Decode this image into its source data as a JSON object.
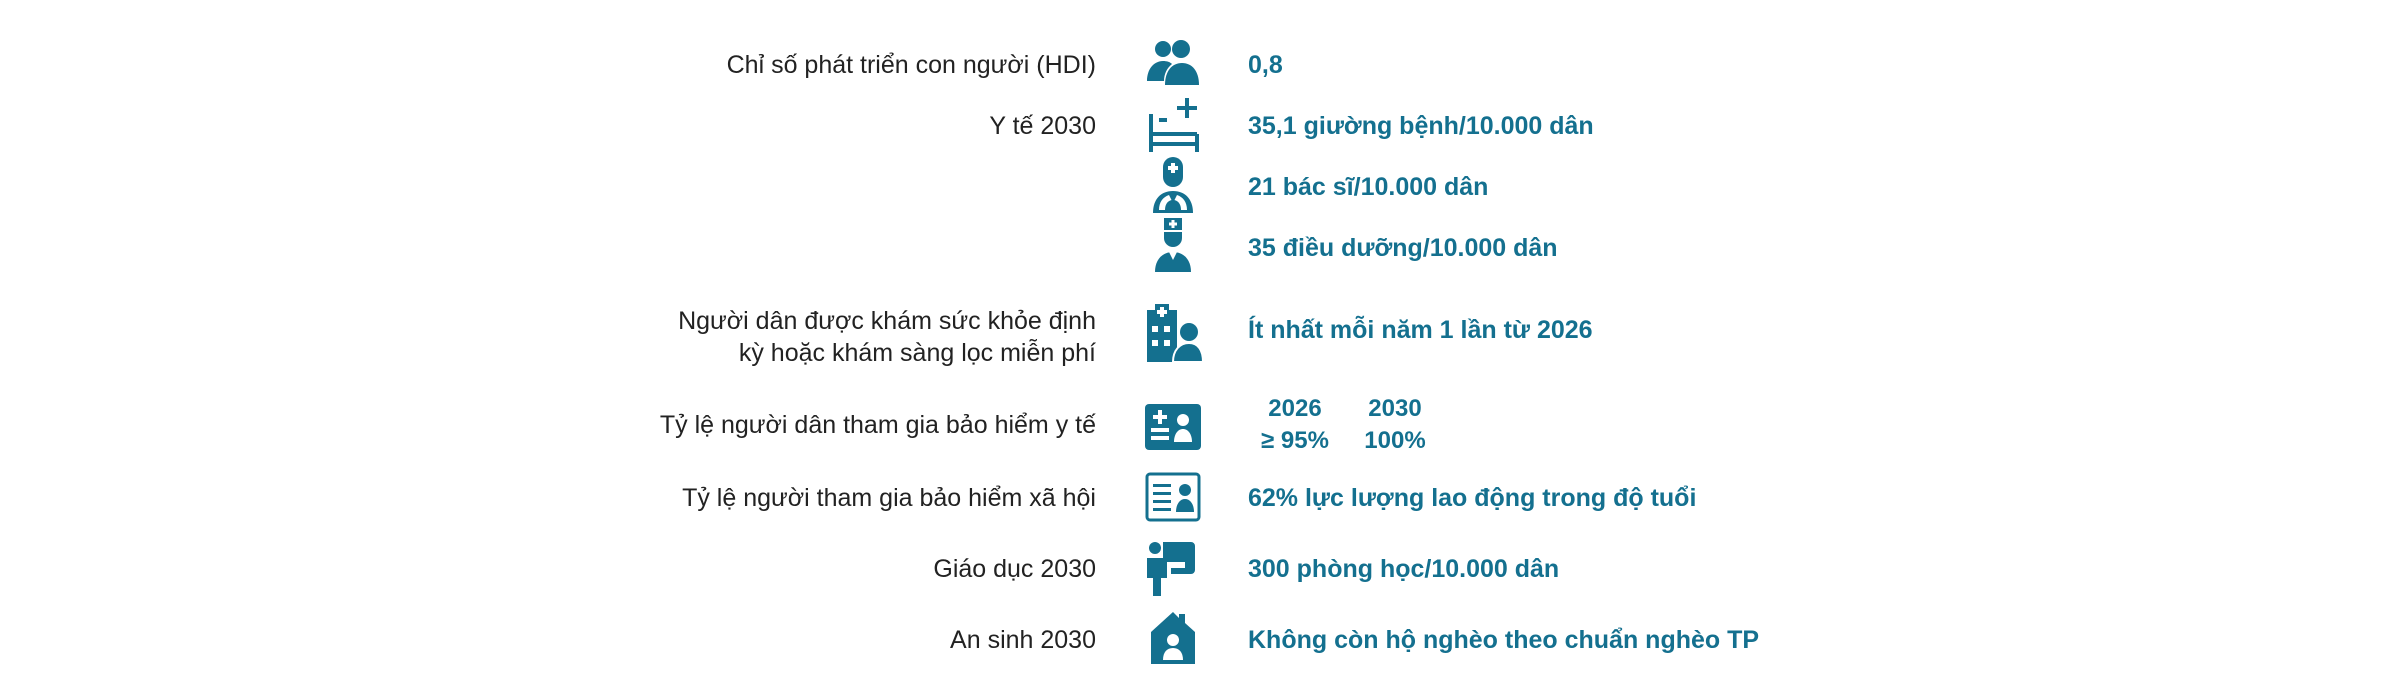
{
  "accent_color": "#14708f",
  "rows": [
    {
      "label": "Chỉ số phát triển con người (HDI)",
      "icon": "people-icon",
      "value": "0,8"
    },
    {
      "label": "Y tế 2030",
      "icon": "hospital-bed-icon",
      "value": "35,1 giường bệnh/10.000 dân"
    },
    {
      "icon": "doctor-icon",
      "value": "21 bác sĩ/10.000 dân"
    },
    {
      "icon": "nurse-icon",
      "value": "35 điều dưỡng/10.000 dân"
    },
    {
      "label_line1": "Người dân được khám sức khỏe định",
      "label_line2": "kỳ hoặc khám sàng lọc miễn phí",
      "icon": "hospital-person-icon",
      "value": "Ít nhất mỗi năm 1 lần từ 2026"
    },
    {
      "label": "Tỷ lệ người dân tham gia bảo hiểm y tế",
      "icon": "health-insurance-card-icon",
      "years": [
        "2026",
        "2030"
      ],
      "values": [
        "≥ 95%",
        "100%"
      ]
    },
    {
      "label": "Tỷ lệ người tham gia bảo hiểm xã hội",
      "icon": "id-card-icon",
      "value": "62% lực lượng lao động trong độ tuổi"
    },
    {
      "label": "Giáo dục 2030",
      "icon": "teacher-board-icon",
      "value": "300 phòng học/10.000 dân"
    },
    {
      "label": "An sinh 2030",
      "icon": "house-person-icon",
      "value": "Không còn hộ nghèo theo chuẩn nghèo TP"
    }
  ]
}
